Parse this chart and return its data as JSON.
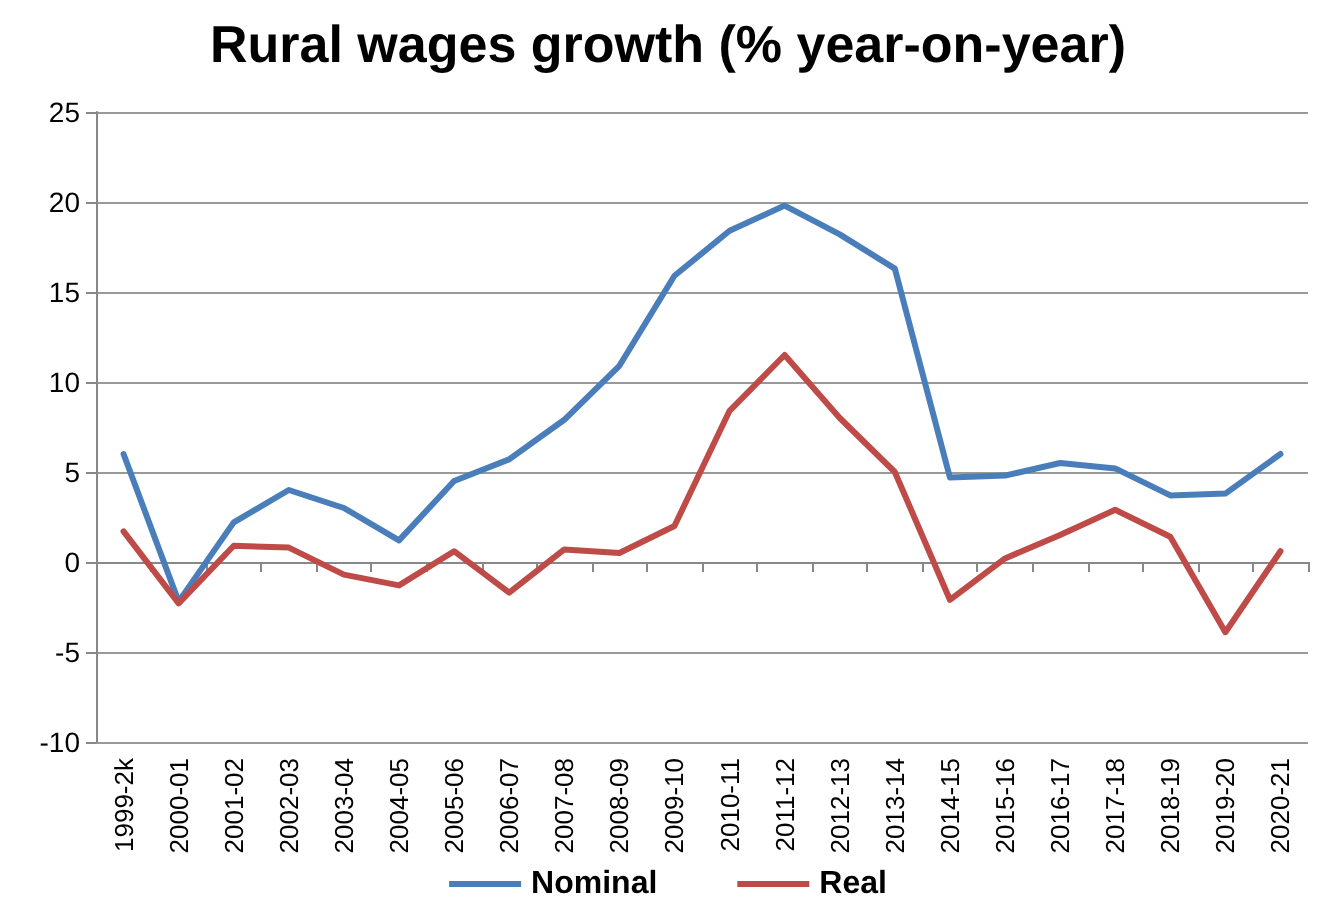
{
  "chart_data": {
    "type": "line",
    "title": "Rural wages growth (% year-on-year)",
    "categories": [
      "1999-2k",
      "2000-01",
      "2001-02",
      "2002-03",
      "2003-04",
      "2004-05",
      "2005-06",
      "2006-07",
      "2007-08",
      "2008-09",
      "2009-10",
      "2010-11",
      "2011-12",
      "2012-13",
      "2013-14",
      "2014-15",
      "2015-16",
      "2016-17",
      "2017-18",
      "2018-19",
      "2019-20",
      "2020-21"
    ],
    "series": [
      {
        "name": "Nominal",
        "color": "#4a7ebb",
        "values": [
          6,
          -2.2,
          2.2,
          4,
          3,
          1.2,
          4.5,
          5.7,
          7.9,
          10.9,
          15.9,
          18.4,
          19.8,
          18.2,
          16.3,
          4.7,
          4.8,
          5.5,
          5.2,
          3.7,
          3.8,
          6.0
        ]
      },
      {
        "name": "Real",
        "color": "#be4b48",
        "values": [
          1.7,
          -2.3,
          0.9,
          0.8,
          -0.7,
          -1.3,
          0.6,
          -1.7,
          0.7,
          0.5,
          2.0,
          8.4,
          11.5,
          8.0,
          5.0,
          -2.1,
          0.2,
          1.5,
          2.9,
          1.4,
          -3.9,
          0.6
        ]
      }
    ],
    "ylim": [
      -10,
      25
    ],
    "yticks": [
      -10,
      -5,
      0,
      5,
      10,
      15,
      20,
      25
    ],
    "grid": "y",
    "legend": "bottom",
    "marker": "none",
    "line_style": "solid"
  }
}
